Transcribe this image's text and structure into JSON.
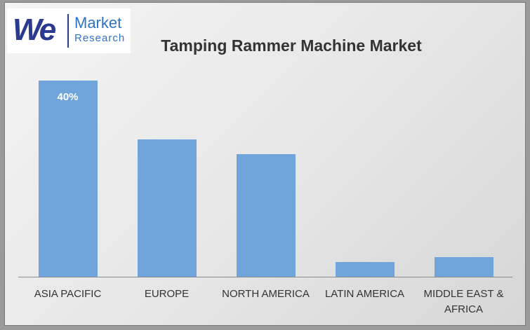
{
  "logo": {
    "mark": "We",
    "line1": "Market",
    "line2": "Research"
  },
  "chart_data": {
    "type": "bar",
    "title": "Tamping Rammer Machine Market",
    "categories": [
      "ASIA PACIFIC",
      "EUROPE",
      "NORTH AMERICA",
      "LATIN AMERICA",
      "MIDDLE EAST & AFRICA"
    ],
    "values": [
      40,
      28,
      25,
      3,
      4
    ],
    "value_labels": [
      "40%",
      null,
      null,
      null,
      null
    ],
    "color": "#6fa5da"
  }
}
